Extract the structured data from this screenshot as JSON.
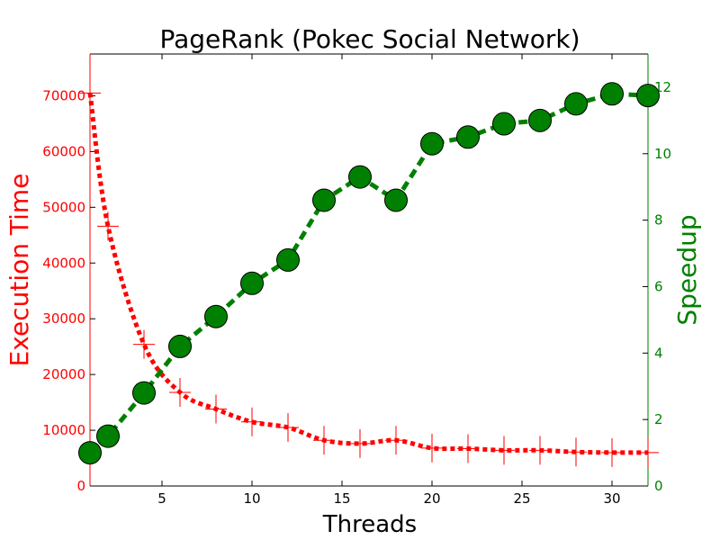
{
  "chart_data": {
    "type": "line",
    "title": "PageRank (Pokec Social Network)",
    "xlabel": "Threads",
    "ylabel_left": "Execution Time",
    "ylabel_right": "Speedup",
    "xlim": [
      1,
      32
    ],
    "ylim_left": [
      0,
      77500
    ],
    "ylim_right": [
      0,
      13
    ],
    "xticks": [
      5,
      10,
      15,
      20,
      25,
      30
    ],
    "yticks_left": [
      0,
      10000,
      20000,
      30000,
      40000,
      50000,
      60000,
      70000
    ],
    "yticks_right": [
      0,
      2,
      4,
      6,
      8,
      10,
      12
    ],
    "colors": {
      "left": "#ff0000",
      "right": "#008000",
      "axes": "#000000"
    },
    "series": [
      {
        "axis": "left",
        "color": "#ff0000",
        "marker": "plus",
        "linestyle": "dotted",
        "x": [
          1,
          2,
          4,
          6,
          8,
          10,
          12,
          14,
          16,
          18,
          20,
          22,
          24,
          26,
          28,
          30,
          32
        ],
        "values": [
          70500,
          46600,
          25400,
          16800,
          13800,
          11500,
          10500,
          8200,
          7600,
          8200,
          6800,
          6700,
          6400,
          6400,
          6100,
          6000,
          6000
        ]
      },
      {
        "axis": "right",
        "color": "#008000",
        "marker": "circle",
        "linestyle": "dashed",
        "x": [
          1,
          2,
          4,
          6,
          8,
          10,
          12,
          14,
          16,
          18,
          20,
          22,
          24,
          26,
          28,
          30,
          32
        ],
        "values": [
          1.0,
          1.5,
          2.8,
          4.2,
          5.1,
          6.1,
          6.8,
          8.6,
          9.3,
          8.6,
          10.3,
          10.5,
          10.9,
          11.0,
          11.5,
          11.8,
          11.75
        ]
      }
    ]
  }
}
